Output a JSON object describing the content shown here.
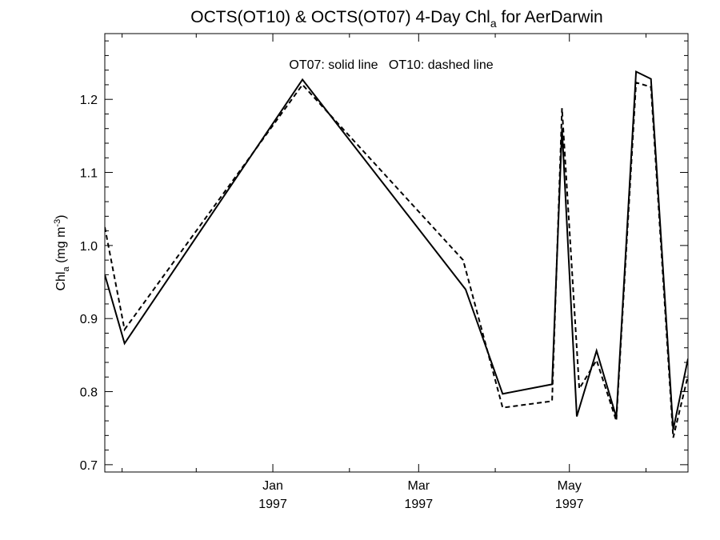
{
  "chart_data": {
    "type": "line",
    "title": {
      "main": "OCTS(OT10) & OCTS(OT07) 4-Day Chl",
      "subscript": "a",
      "suffix": " for AerDarwin"
    },
    "annotation": "OT07: solid line   OT10: dashed line",
    "ylabel": {
      "main": "Chl",
      "subscript": "a",
      "units_pre": " (mg m",
      "units_sup": "-3",
      "units_post": ")"
    },
    "xlabel": "",
    "x_ticks": [
      {
        "date": "1997-01-01",
        "month": "Jan",
        "year": "1997"
      },
      {
        "date": "1997-03-01",
        "month": "Mar",
        "year": "1997"
      },
      {
        "date": "1997-05-01",
        "month": "May",
        "year": "1997"
      }
    ],
    "x_minor_ticks": [
      "1996-11-01",
      "1996-12-01",
      "1997-02-01",
      "1997-04-01",
      "1997-06-01"
    ],
    "xlim": [
      "1996-10-25",
      "1997-06-18"
    ],
    "ylim": [
      0.69,
      1.29
    ],
    "y_ticks": [
      "0.7",
      "0.8",
      "0.9",
      "1.0",
      "1.1",
      "1.2"
    ],
    "grid": false,
    "series": [
      {
        "name": "OT07",
        "style": "solid",
        "x": [
          "1996-10-25",
          "1996-11-02",
          "1997-01-13",
          "1997-03-20",
          "1997-04-04",
          "1997-04-24",
          "1997-04-28",
          "1997-05-04",
          "1997-05-12",
          "1997-05-20",
          "1997-05-28",
          "1997-06-03",
          "1997-06-12",
          "1997-06-18"
        ],
        "values": [
          0.96,
          0.866,
          1.227,
          0.94,
          0.797,
          0.81,
          1.16,
          0.766,
          0.856,
          0.765,
          1.238,
          1.228,
          0.748,
          0.845
        ]
      },
      {
        "name": "OT10",
        "style": "dashed",
        "x": [
          "1996-10-25",
          "1996-11-02",
          "1997-01-13",
          "1997-03-19",
          "1997-04-04",
          "1997-04-24",
          "1997-04-28",
          "1997-05-05",
          "1997-05-12",
          "1997-05-20",
          "1997-05-28",
          "1997-06-03",
          "1997-06-12",
          "1997-06-18"
        ],
        "values": [
          1.025,
          0.885,
          1.22,
          0.98,
          0.778,
          0.787,
          1.188,
          0.804,
          0.843,
          0.76,
          1.223,
          1.217,
          0.737,
          0.822
        ]
      }
    ]
  }
}
